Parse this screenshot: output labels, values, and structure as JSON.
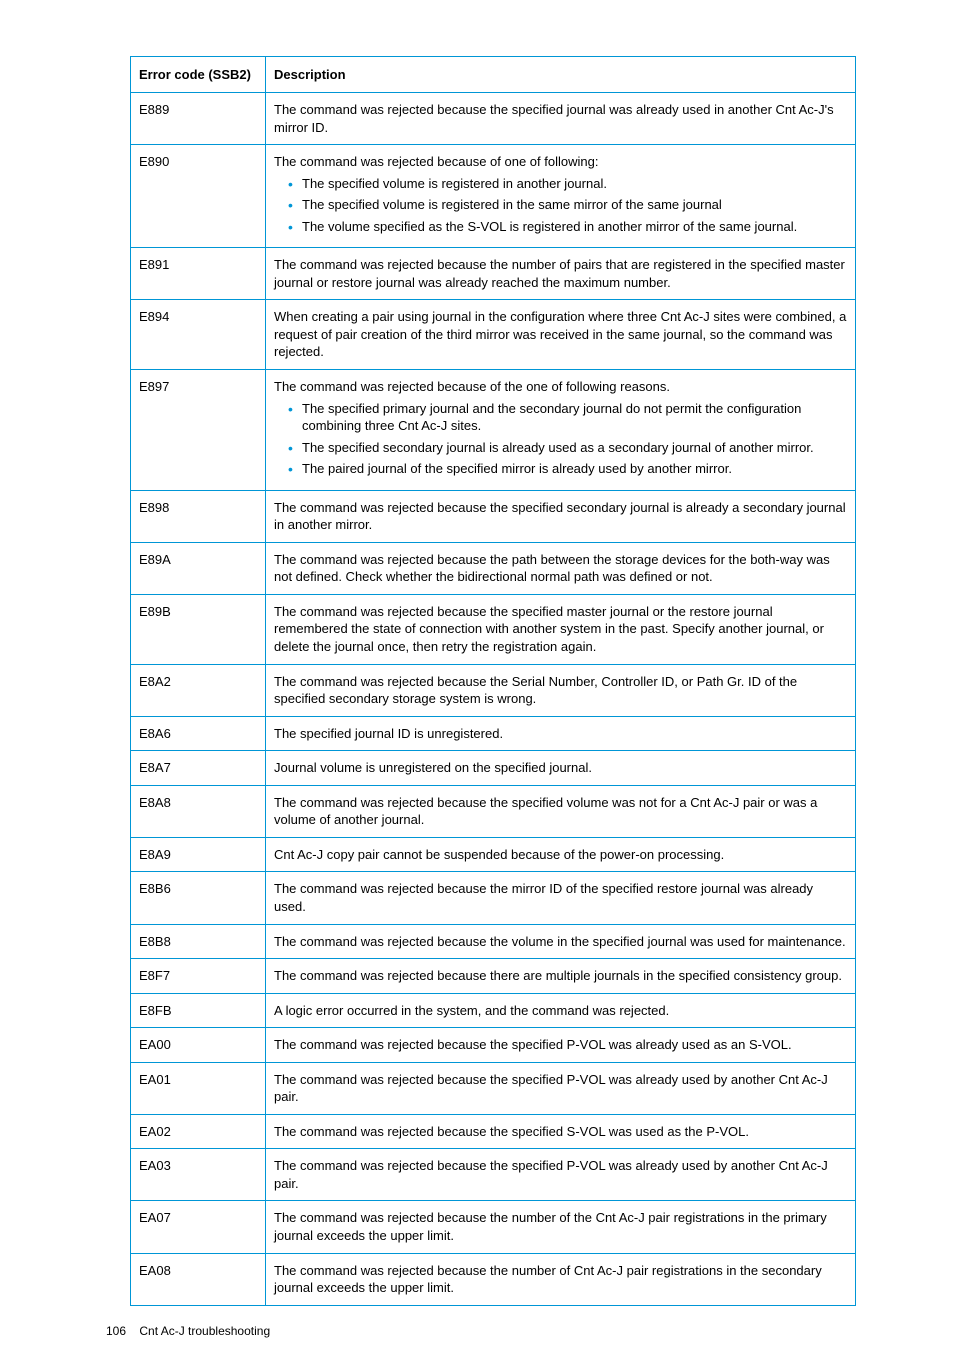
{
  "columns": {
    "code": "Error code (SSB2)",
    "desc": "Description"
  },
  "rows": [
    {
      "code": "E889",
      "desc": "The command was rejected because the specified journal was already used in another Cnt Ac-J's mirror ID."
    },
    {
      "code": "E890",
      "intro": "The command was rejected because of one of following:",
      "bullets": [
        "The specified volume is registered in another journal.",
        "The specified volume is registered in the same mirror of the same journal",
        "The volume specified as the S-VOL is registered in another mirror of the same journal."
      ]
    },
    {
      "code": "E891",
      "desc": "The command was rejected because the number of pairs that are registered in the specified master journal or restore journal was already reached the maximum number."
    },
    {
      "code": "E894",
      "desc": "When creating a pair using journal in the configuration where three Cnt Ac-J sites were combined, a request of pair creation of the third mirror was received in the same journal, so the command was rejected."
    },
    {
      "code": "E897",
      "intro": "The command was rejected because of the one of following reasons.",
      "bullets": [
        "The specified primary journal and the secondary journal do not permit the configuration combining three Cnt Ac-J sites.",
        "The specified secondary journal is already used as a secondary journal of another mirror.",
        "The paired journal of the specified mirror is already used by another mirror."
      ]
    },
    {
      "code": "E898",
      "desc": "The command was rejected because the specified secondary journal is already a secondary journal in another mirror."
    },
    {
      "code": "E89A",
      "desc": "The command was rejected because the path between the storage devices for the both-way was not defined. Check whether the bidirectional normal path was defined or not."
    },
    {
      "code": "E89B",
      "desc": "The command was rejected because the specified master journal or the restore journal remembered the state of connection with another system in the past. Specify another journal, or delete the journal once, then retry the registration again."
    },
    {
      "code": "E8A2",
      "desc": "The command was rejected because the Serial Number, Controller ID, or Path Gr. ID of the specified secondary storage system is wrong."
    },
    {
      "code": "E8A6",
      "desc": "The specified journal ID is unregistered."
    },
    {
      "code": "E8A7",
      "desc": "Journal volume is unregistered on the specified journal."
    },
    {
      "code": "E8A8",
      "desc": "The command was rejected because the specified volume was not for a Cnt Ac-J pair or was a volume of another journal."
    },
    {
      "code": "E8A9",
      "desc": "Cnt Ac-J copy pair cannot be suspended because of the power-on processing."
    },
    {
      "code": "E8B6",
      "desc": "The command was rejected because the mirror ID of the specified restore journal was already used."
    },
    {
      "code": "E8B8",
      "desc": "The command was rejected because the volume in the specified journal was used for maintenance."
    },
    {
      "code": "E8F7",
      "desc": "The command was rejected because there are multiple journals in the specified consistency group."
    },
    {
      "code": "E8FB",
      "desc": "A logic error occurred in the system, and the command was rejected."
    },
    {
      "code": "EA00",
      "desc": "The command was rejected because the specified P-VOL was already used as an S-VOL."
    },
    {
      "code": "EA01",
      "desc": "The command was rejected because the specified P-VOL was already used by another Cnt Ac-J pair."
    },
    {
      "code": "EA02",
      "desc": "The command was rejected because the specified S-VOL was used as the P-VOL."
    },
    {
      "code": "EA03",
      "desc": "The command was rejected because the specified P-VOL was already used by another Cnt Ac-J pair."
    },
    {
      "code": "EA07",
      "desc": "The command was rejected because the number of the Cnt Ac-J pair registrations in the primary journal exceeds the upper limit."
    },
    {
      "code": "EA08",
      "desc": "The command was rejected because the number of Cnt Ac-J pair registrations in the secondary journal exceeds the upper limit."
    }
  ],
  "footer": {
    "pagenum": "106",
    "text": "Cnt Ac-J troubleshooting"
  }
}
